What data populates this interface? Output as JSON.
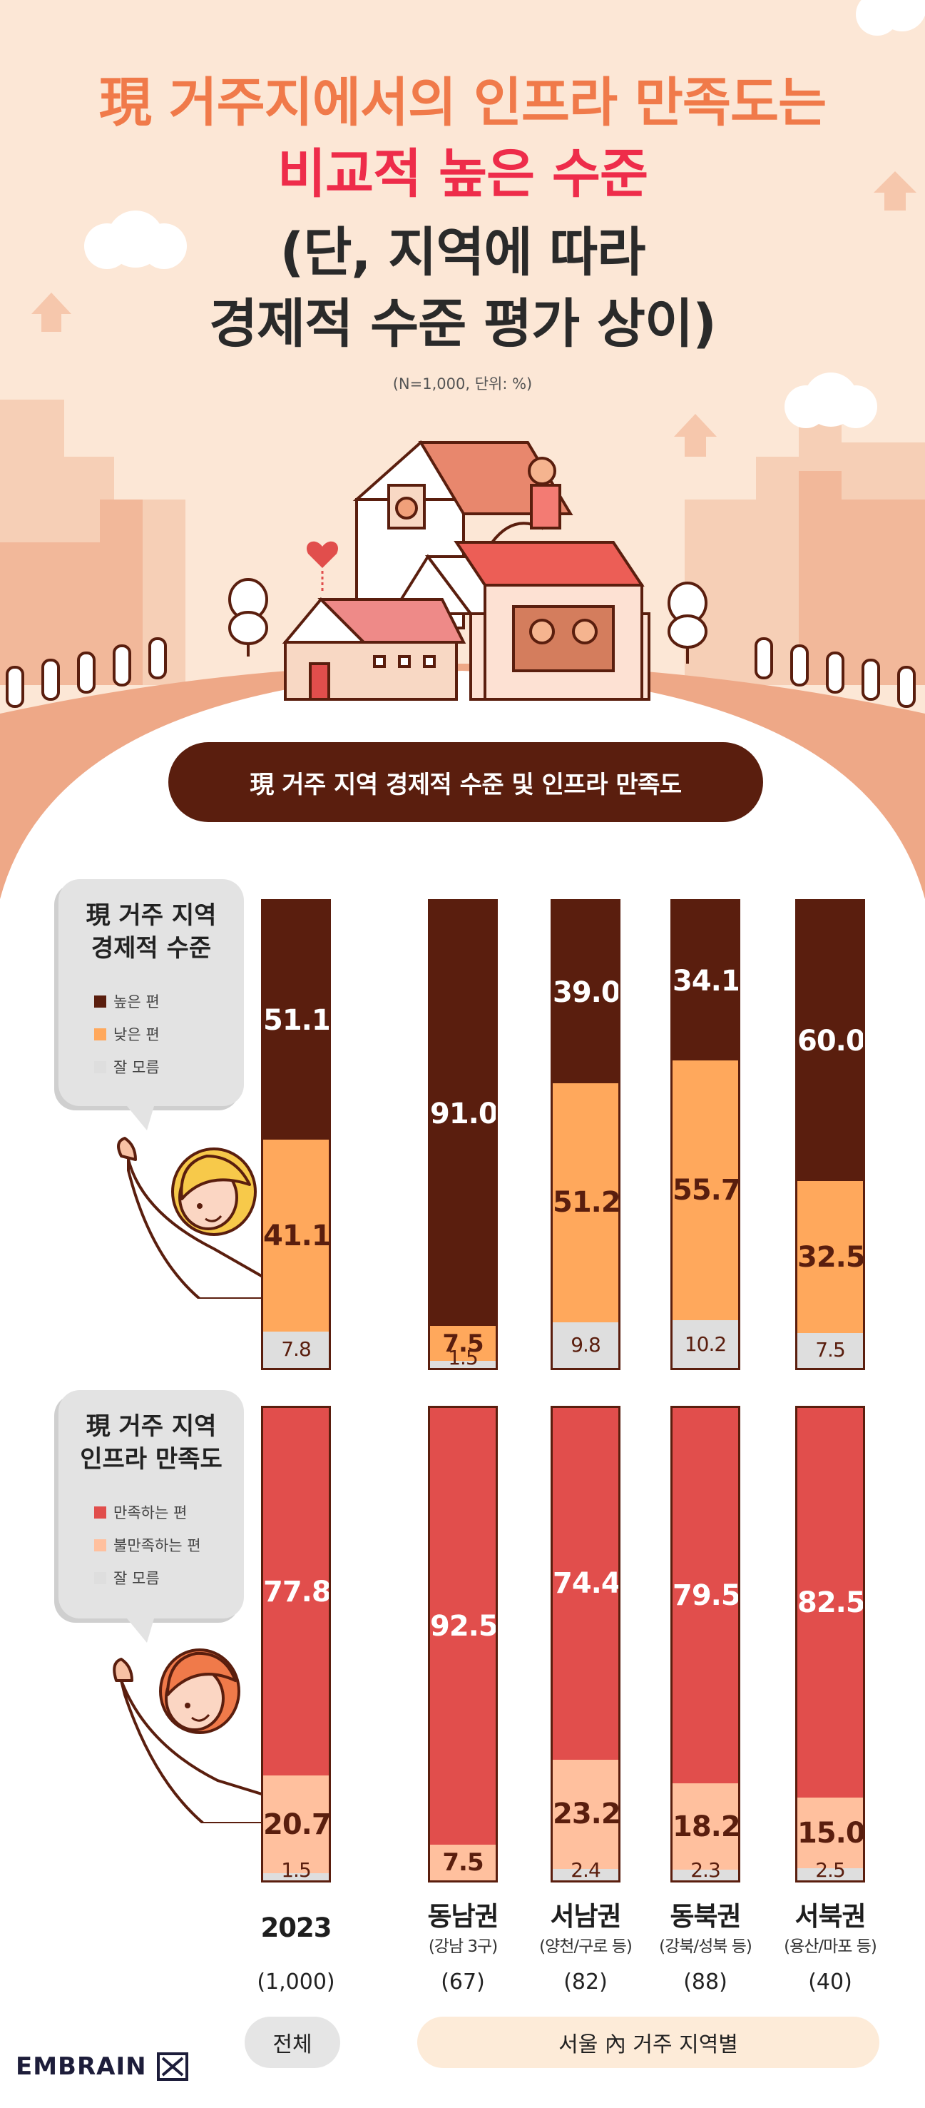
{
  "title": {
    "line1": "現 거주지에서의 인프라 만족도는",
    "line2": "비교적 높은 수준",
    "line3": "(단, 지역에 따라",
    "line4": "경제적 수준 평가 상이)"
  },
  "note": "(N=1,000, 단위: %)",
  "section_title": "現 거주 지역 경제적 수준 및 인프라 만족도",
  "colors": {
    "high": "#5a1e0e",
    "low": "#ffa85c",
    "unknown": "#dedede",
    "satisfied": "#e14e4c",
    "unsatisfied": "#ffc09e",
    "unknown2": "#dedede"
  },
  "legend_economic": {
    "title_line1": "現 거주 지역",
    "title_line2": "경제적 수준",
    "items": [
      "높은 편",
      "낮은 편",
      "잘 모름"
    ]
  },
  "legend_infra": {
    "title_line1": "現 거주 지역",
    "title_line2": "인프라 만족도",
    "items": [
      "만족하는 편",
      "불만족하는 편",
      "잘 모름"
    ]
  },
  "chart_data": [
    {
      "type": "bar",
      "stacked": true,
      "title": "現 거주 지역 경제적 수준",
      "categories": [
        "2023",
        "동남권",
        "서남권",
        "동북권",
        "서북권"
      ],
      "series": [
        {
          "name": "높은 편",
          "values": [
            51.1,
            91.0,
            39.0,
            34.1,
            60.0
          ]
        },
        {
          "name": "낮은 편",
          "values": [
            41.1,
            7.5,
            51.2,
            55.7,
            32.5
          ]
        },
        {
          "name": "잘 모름",
          "values": [
            7.8,
            1.5,
            9.8,
            10.2,
            7.5
          ]
        }
      ],
      "ylim": [
        0,
        100
      ]
    },
    {
      "type": "bar",
      "stacked": true,
      "title": "現 거주 지역 인프라 만족도",
      "categories": [
        "2023",
        "동남권",
        "서남권",
        "동북권",
        "서북권"
      ],
      "series": [
        {
          "name": "만족하는 편",
          "values": [
            77.8,
            92.5,
            74.4,
            79.5,
            82.5
          ]
        },
        {
          "name": "불만족하는 편",
          "values": [
            20.7,
            7.5,
            23.2,
            18.2,
            15.0
          ]
        },
        {
          "name": "잘 모름",
          "values": [
            1.5,
            0,
            2.4,
            2.3,
            2.5
          ]
        }
      ],
      "ylim": [
        0,
        100
      ]
    }
  ],
  "categories_info": [
    {
      "label": "2023",
      "sub": "",
      "n": "(1,000)"
    },
    {
      "label": "동남권",
      "sub": "(강남 3구)",
      "n": "(67)"
    },
    {
      "label": "서남권",
      "sub": "(양천/구로 등)",
      "n": "(82)"
    },
    {
      "label": "동북권",
      "sub": "(강북/성북 등)",
      "n": "(88)"
    },
    {
      "label": "서북권",
      "sub": "(용산/마포 등)",
      "n": "(40)"
    }
  ],
  "group_labels": {
    "total": "전체",
    "region": "서울 內 거주 지역별"
  },
  "brand": "EMBRAIN"
}
